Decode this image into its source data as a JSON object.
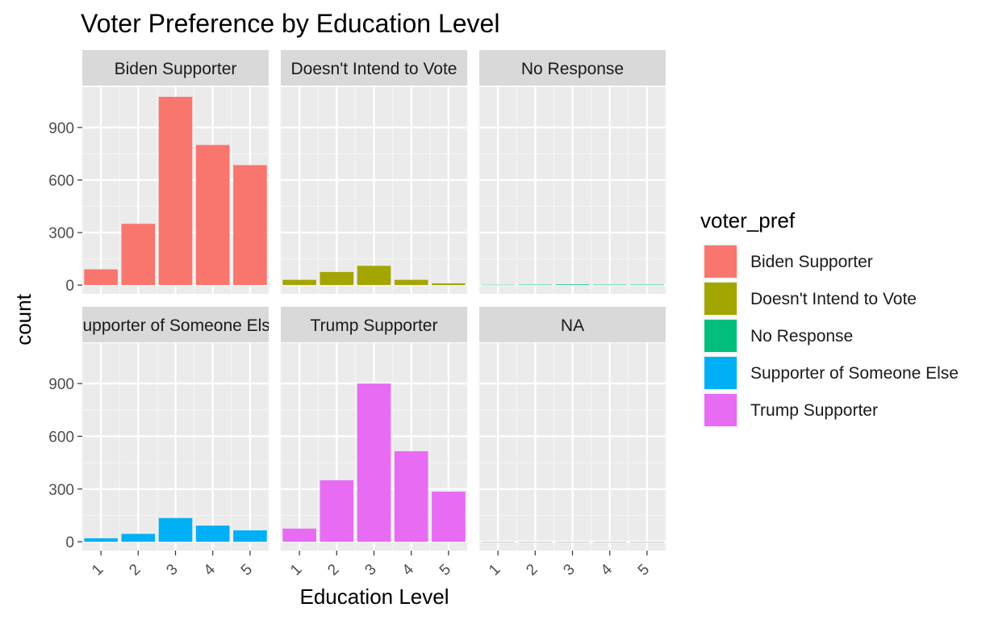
{
  "chart_data": {
    "type": "bar",
    "title": "Voter Preference by Education Level",
    "xlabel": "Education Level",
    "ylabel": "count",
    "categories": [
      "1",
      "2",
      "3",
      "4",
      "5"
    ],
    "yticks": [
      0,
      300,
      600,
      900
    ],
    "ylim": [
      -50,
      1130
    ],
    "grid": true,
    "legend": {
      "title": "voter_pref",
      "placement": "right",
      "entries": [
        {
          "name": "Biden Supporter",
          "color": "#F8766D"
        },
        {
          "name": "Doesn't Intend to Vote",
          "color": "#A3A500"
        },
        {
          "name": "No Response",
          "color": "#00BF7D"
        },
        {
          "name": "Supporter of Someone Else",
          "color": "#00B0F6"
        },
        {
          "name": "Trump Supporter",
          "color": "#E76BF3"
        }
      ]
    },
    "facets": [
      {
        "label": "Biden Supporter",
        "color": "#F8766D",
        "values": [
          90,
          350,
          1075,
          800,
          685
        ]
      },
      {
        "label": "Doesn't Intend to Vote",
        "color": "#A3A500",
        "values": [
          30,
          75,
          110,
          30,
          10
        ]
      },
      {
        "label": "No Response",
        "color": "#00BF7D",
        "values": [
          2,
          3,
          4,
          3,
          3
        ]
      },
      {
        "label": "Supporter of Someone Else",
        "color": "#00B0F6",
        "values": [
          20,
          45,
          135,
          92,
          65
        ]
      },
      {
        "label": "Trump Supporter",
        "color": "#E76BF3",
        "values": [
          75,
          350,
          900,
          515,
          285
        ]
      },
      {
        "label": "NA",
        "color": "#999999",
        "values": [
          0,
          0,
          0,
          0,
          0
        ]
      }
    ]
  }
}
